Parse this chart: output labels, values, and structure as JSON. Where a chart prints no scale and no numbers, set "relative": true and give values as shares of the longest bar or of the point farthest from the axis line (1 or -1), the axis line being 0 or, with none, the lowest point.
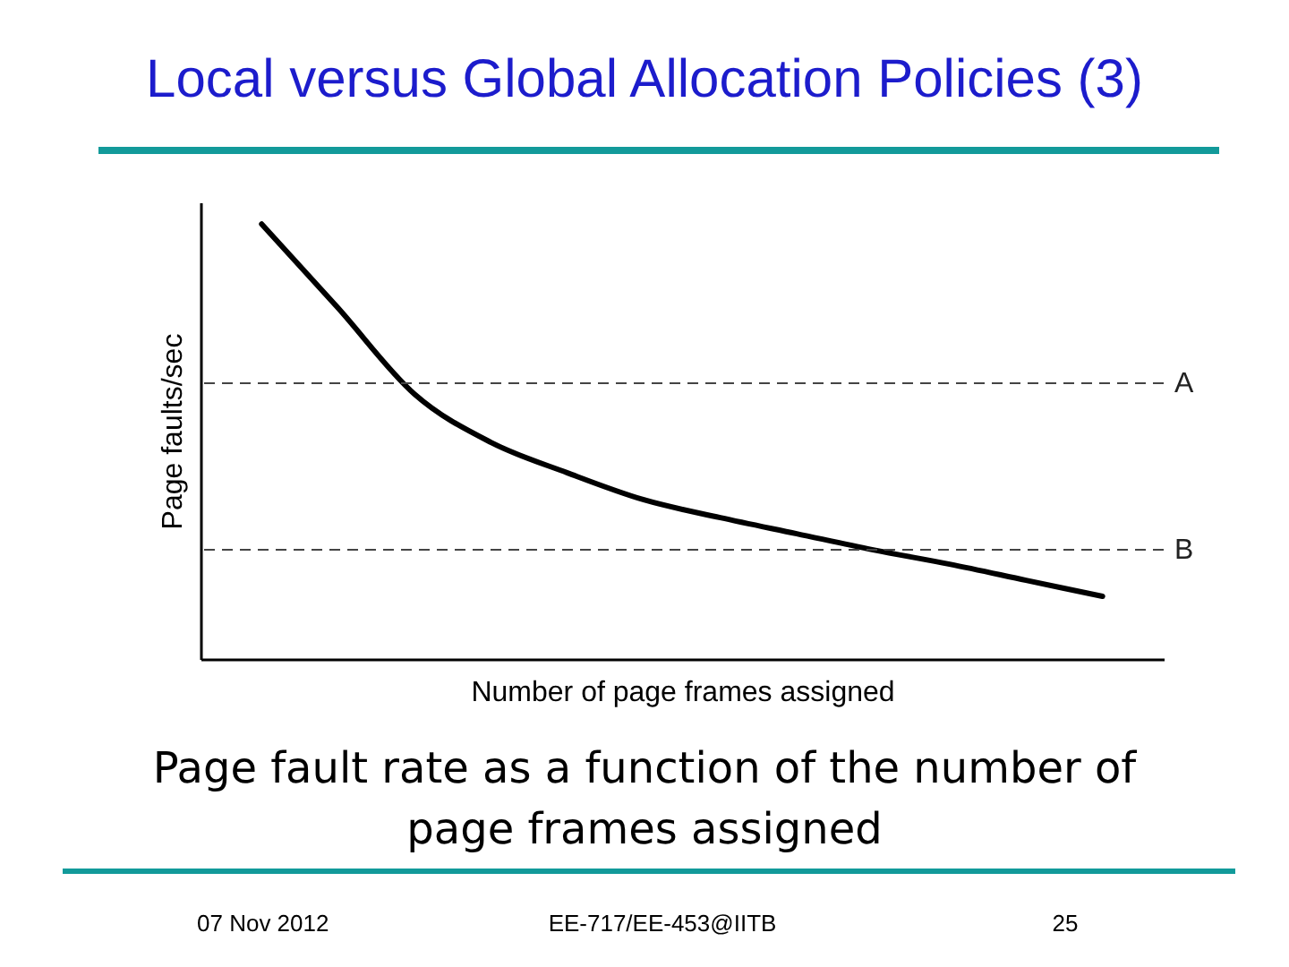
{
  "chart_data": {
    "type": "line",
    "title": "Local versus Global Allocation Policies (3)",
    "subtitle": "Page fault rate as a function of the number of page frames assigned",
    "xlabel": "Number of page frames assigned",
    "ylabel": "Page faults/sec",
    "relative": true,
    "categories": [
      null,
      null,
      null,
      null,
      null,
      null,
      null,
      null,
      null,
      null,
      null,
      null
    ],
    "series": [
      {
        "color": "#000000",
        "values": [
          1,
          0.807,
          0.609,
          0.498,
          0.428,
          0.366,
          0.325,
          0.288,
          0.251,
          0.218,
          0.181,
          0.144
        ]
      }
    ],
    "ref_lines": [
      {
        "axis": "y",
        "value": 0.634,
        "label": "A",
        "color": "#444444",
        "line_style": "dashed"
      },
      {
        "axis": "y",
        "value": 0.251,
        "label": "B",
        "color": "#444444",
        "line_style": "dashed"
      }
    ],
    "grid": false,
    "marker": "none",
    "line_style": "solid",
    "annotations": [
      "07 Nov 2012",
      "EE-717/EE-453@IITB",
      "25"
    ]
  }
}
